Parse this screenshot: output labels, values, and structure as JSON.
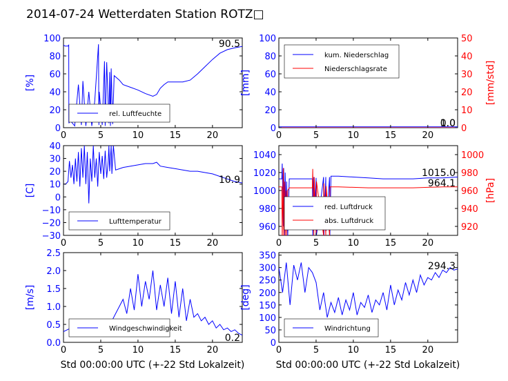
{
  "title": "2014-07-24 Wetterdaten Station ROTZ□",
  "colors": {
    "primary": "#0000ff",
    "secondary": "#ff0000",
    "axis": "#000000"
  },
  "chart_data": [
    {
      "id": "humidity",
      "type": "line",
      "ylabel": "[%]",
      "xlim": [
        0,
        24
      ],
      "ylim": [
        0,
        100
      ],
      "xticks": [
        "0",
        "5",
        "10",
        "15",
        "20"
      ],
      "yticks": [
        "0",
        "20",
        "40",
        "60",
        "80",
        "100"
      ],
      "legend": [
        "rel. Luftfeuchte"
      ],
      "legend_position": "lower-left",
      "last_value": "90.5",
      "series": [
        {
          "name": "rel. Luftfeuchte",
          "axis": "left",
          "style": "line",
          "x": [
            0,
            0.2,
            0.6,
            0.7,
            0.72,
            0.9,
            1.5,
            2.0,
            2.4,
            2.6,
            3.0,
            3.4,
            3.8,
            4.2,
            4.7,
            4.75,
            4.8,
            5.2,
            5.5,
            5.6,
            5.8,
            6.1,
            6.2,
            6.3,
            6.4,
            6.6,
            6.8,
            7.5,
            8.0,
            9.0,
            10.0,
            11.0,
            12.0,
            12.5,
            13.0,
            13.5,
            14.0,
            15.0,
            16.0,
            17.0,
            18.0,
            19.0,
            20.0,
            21.0,
            22.0,
            23.0,
            24.0
          ],
          "y": [
            92,
            91,
            91,
            92,
            5,
            8,
            2,
            48,
            3,
            52,
            2,
            40,
            2,
            30,
            93,
            3,
            40,
            3,
            74,
            2,
            73,
            5,
            62,
            2,
            66,
            4,
            58,
            53,
            48,
            45,
            42,
            38,
            35,
            37,
            44,
            48,
            51,
            51,
            51,
            53,
            60,
            68,
            76,
            83,
            87,
            89,
            90.5
          ]
        }
      ]
    },
    {
      "id": "precipitation",
      "type": "line",
      "ylabel": "[mm]",
      "ylabel_right": "[mm/std]",
      "xlim": [
        0,
        24
      ],
      "ylim": [
        0,
        100
      ],
      "ylim_right": [
        0,
        50
      ],
      "xticks": [
        "0",
        "5",
        "10",
        "15",
        "20"
      ],
      "yticks": [
        "0",
        "20",
        "40",
        "60",
        "80",
        "100"
      ],
      "yticks_right": [
        "0",
        "10",
        "20",
        "30",
        "40",
        "50"
      ],
      "legend": [
        "kum. Niederschlag",
        "Niederschlagsrate"
      ],
      "legend_position": "upper-left",
      "last_value": "1.0",
      "last_value_right": "0.0",
      "series": [
        {
          "name": "kum. Niederschlag",
          "axis": "left",
          "style": "line",
          "x": [
            0,
            24
          ],
          "y": [
            1.0,
            1.0
          ]
        },
        {
          "name": "Niederschlagsrate",
          "axis": "right",
          "style": "line",
          "x": [
            0,
            24
          ],
          "y": [
            0,
            0
          ]
        }
      ]
    },
    {
      "id": "temperature",
      "type": "line",
      "ylabel": "[C]",
      "xlim": [
        0,
        24
      ],
      "ylim": [
        -30,
        40
      ],
      "xticks": [
        "0",
        "5",
        "10",
        "15",
        "20"
      ],
      "yticks": [
        "−30",
        "−20",
        "−10",
        "0",
        "10",
        "20",
        "30",
        "40"
      ],
      "legend": [
        "Lufttemperatur"
      ],
      "legend_position": "lower-left",
      "last_value": "10.9",
      "series": [
        {
          "name": "Lufttemperatur",
          "axis": "left",
          "style": "line",
          "x": [
            0,
            0.3,
            0.6,
            0.8,
            1.0,
            1.2,
            1.4,
            1.6,
            1.8,
            2.0,
            2.2,
            2.4,
            2.6,
            2.8,
            3.0,
            3.2,
            3.4,
            3.6,
            3.8,
            4.0,
            4.2,
            4.4,
            4.6,
            4.8,
            5.0,
            5.2,
            5.4,
            5.6,
            5.8,
            6.0,
            6.1,
            6.2,
            6.4,
            6.5,
            6.7,
            7.0,
            8.0,
            9.0,
            10.0,
            11.0,
            12.0,
            12.5,
            13.0,
            14.0,
            15.0,
            16.0,
            17.0,
            18.0,
            19.0,
            20.0,
            21.0,
            22.0,
            23.0,
            24.0
          ],
          "y": [
            10,
            10,
            12,
            28,
            15,
            25,
            10,
            30,
            12,
            35,
            8,
            38,
            15,
            40,
            10,
            35,
            -5,
            30,
            12,
            40,
            15,
            30,
            8,
            35,
            18,
            32,
            14,
            36,
            15,
            28,
            40,
            20,
            40,
            18,
            40,
            21,
            23,
            24,
            25,
            26,
            26,
            27,
            24,
            23,
            22,
            21,
            20,
            20,
            19,
            18,
            16,
            14,
            12,
            10.9
          ]
        }
      ]
    },
    {
      "id": "pressure",
      "type": "line",
      "ylabel_right": "[hPa]",
      "xlim": [
        0,
        24
      ],
      "ylim": [
        950,
        1050
      ],
      "ylim_right": [
        910,
        1010
      ],
      "xticks": [
        "0",
        "5",
        "10",
        "15",
        "20"
      ],
      "yticks": [
        "960",
        "980",
        "1000",
        "1020",
        "1040"
      ],
      "yticks_right": [
        "920",
        "940",
        "960",
        "980",
        "1000"
      ],
      "legend": [
        "red. Luftdruck",
        "abs. Luftdruck"
      ],
      "legend_position": "lower-left",
      "last_value": "1015.0",
      "last_value_right": "964.1",
      "series": [
        {
          "name": "red. Luftdruck",
          "axis": "left",
          "style": "line",
          "x": [
            0,
            0.4,
            0.45,
            0.6,
            0.65,
            0.8,
            0.85,
            1.0,
            1.05,
            1.2,
            1.4,
            4.5,
            4.55,
            4.7,
            4.75,
            5.0,
            5.05,
            6.0,
            6.05,
            6.3,
            6.35,
            6.8,
            6.85,
            7.0,
            8.0,
            10.0,
            12.0,
            14.0,
            16.0,
            18.0,
            20.0,
            22.0,
            24.0
          ],
          "y": [
            1013,
            1013,
            1030,
            960,
            1025,
            950,
            1020,
            958,
            1010,
            950,
            1013,
            1013,
            950,
            1015,
            960,
            1014,
            950,
            1015,
            950,
            1015,
            955,
            1015,
            950,
            1016,
            1016,
            1015,
            1014,
            1013,
            1013,
            1013,
            1014,
            1014,
            1015
          ]
        },
        {
          "name": "abs. Luftdruck",
          "axis": "right",
          "style": "line",
          "x": [
            0,
            0.4,
            0.45,
            0.6,
            0.65,
            0.8,
            0.85,
            1.0,
            1.05,
            1.2,
            1.4,
            4.5,
            4.55,
            4.7,
            4.75,
            5.0,
            5.05,
            6.0,
            6.05,
            6.3,
            6.35,
            6.8,
            6.85,
            7.0,
            8.0,
            10.0,
            12.0,
            14.0,
            16.0,
            18.0,
            20.0,
            22.0,
            24.0
          ],
          "y": [
            964,
            964,
            910,
            985,
            910,
            970,
            910,
            960,
            910,
            960,
            963,
            963,
            984,
            910,
            975,
            910,
            970,
            910,
            968,
            910,
            965,
            910,
            964,
            964,
            964,
            963.5,
            963,
            963,
            963,
            963,
            963.5,
            964,
            964.1
          ]
        }
      ]
    },
    {
      "id": "wind-speed",
      "type": "line",
      "ylabel": "[m/s]",
      "xlim": [
        0,
        24
      ],
      "ylim": [
        0,
        2.5
      ],
      "xticks": [
        "0",
        "5",
        "10",
        "15",
        "20"
      ],
      "yticks": [
        "0.0",
        "0.5",
        "1.0",
        "1.5",
        "2.0",
        "2.5"
      ],
      "legend": [
        "Windgeschwindigkeit"
      ],
      "legend_position": "lower-left",
      "last_value": "0.2",
      "series": [
        {
          "name": "Windgeschwindigkeit",
          "axis": "left",
          "style": "line",
          "x": [
            0,
            0.5,
            1.0,
            1.5,
            2.0,
            2.5,
            3.0,
            3.5,
            4.0,
            4.5,
            5.0,
            5.5,
            6.0,
            6.5,
            7.0,
            7.5,
            8.0,
            8.5,
            9.0,
            9.5,
            10.0,
            10.5,
            11.0,
            11.5,
            12.0,
            12.5,
            13.0,
            13.5,
            14.0,
            14.5,
            15.0,
            15.5,
            16.0,
            16.5,
            17.0,
            17.5,
            18.0,
            18.5,
            19.0,
            19.5,
            20.0,
            20.5,
            21.0,
            21.5,
            22.0,
            22.5,
            23.0,
            23.5,
            24.0
          ],
          "y": [
            0.3,
            0.35,
            0.4,
            0.3,
            0.25,
            0.3,
            0.5,
            0.2,
            0.3,
            0.25,
            0.2,
            0.35,
            0.5,
            0.6,
            0.8,
            1.0,
            1.2,
            0.8,
            1.5,
            0.9,
            1.9,
            1.0,
            1.7,
            1.2,
            2.0,
            0.9,
            1.6,
            1.0,
            1.8,
            0.8,
            1.7,
            0.7,
            1.5,
            0.6,
            1.2,
            0.7,
            0.8,
            0.6,
            0.7,
            0.5,
            0.6,
            0.4,
            0.5,
            0.35,
            0.4,
            0.3,
            0.35,
            0.25,
            0.2
          ]
        }
      ]
    },
    {
      "id": "wind-direction",
      "type": "line",
      "ylabel": "[deg]",
      "xlim": [
        0,
        24
      ],
      "ylim": [
        0,
        360
      ],
      "xticks": [
        "0",
        "5",
        "10",
        "15",
        "20"
      ],
      "yticks": [
        "0",
        "50",
        "100",
        "150",
        "200",
        "250",
        "300",
        "350"
      ],
      "legend": [
        "Windrichtung"
      ],
      "legend_position": "lower-left",
      "last_value": "294.3",
      "series": [
        {
          "name": "Windrichtung",
          "axis": "left",
          "style": "line",
          "x": [
            0,
            0.5,
            1.0,
            1.5,
            2.0,
            2.5,
            3.0,
            3.5,
            4.0,
            4.5,
            5.0,
            5.5,
            6.0,
            6.5,
            7.0,
            7.5,
            8.0,
            8.5,
            9.0,
            9.5,
            10.0,
            10.5,
            11.0,
            11.5,
            12.0,
            12.5,
            13.0,
            13.5,
            14.0,
            14.5,
            15.0,
            15.5,
            16.0,
            16.5,
            17.0,
            17.5,
            18.0,
            18.5,
            19.0,
            19.5,
            20.0,
            20.5,
            21.0,
            21.5,
            22.0,
            22.5,
            23.0,
            23.5,
            24.0
          ],
          "y": [
            300,
            200,
            320,
            150,
            310,
            250,
            320,
            200,
            300,
            280,
            240,
            130,
            200,
            100,
            160,
            120,
            180,
            110,
            170,
            130,
            200,
            110,
            160,
            140,
            190,
            120,
            170,
            150,
            200,
            130,
            230,
            150,
            210,
            170,
            240,
            190,
            250,
            200,
            270,
            230,
            260,
            250,
            280,
            260,
            290,
            280,
            300,
            290,
            294.3
          ]
        }
      ]
    }
  ],
  "xlabel_bottom": "Std 00:00:00 UTC (+-22 Std Lokalzeit)"
}
